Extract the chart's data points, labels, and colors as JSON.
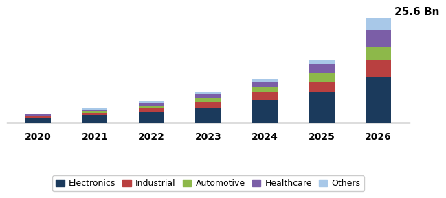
{
  "years": [
    "2020",
    "2021",
    "2022",
    "2023",
    "2024",
    "2025",
    "2026"
  ],
  "categories": [
    "Electronics",
    "Industrial",
    "Automotive",
    "Healthcare",
    "Others"
  ],
  "colors": [
    "#1b3a5c",
    "#b94040",
    "#8db84a",
    "#7b5ea7",
    "#a8c8e8"
  ],
  "values": {
    "Electronics": [
      1.2,
      1.9,
      2.7,
      3.8,
      5.5,
      7.5,
      11.0
    ],
    "Industrial": [
      0.35,
      0.55,
      0.85,
      1.3,
      1.85,
      2.6,
      4.2
    ],
    "Automotive": [
      0.25,
      0.4,
      0.65,
      0.95,
      1.4,
      2.1,
      3.4
    ],
    "Healthcare": [
      0.3,
      0.45,
      0.65,
      0.95,
      1.3,
      2.0,
      4.0
    ],
    "Others": [
      0.2,
      0.3,
      0.4,
      0.6,
      0.75,
      1.1,
      3.0
    ]
  },
  "annotation": "25.6 Bn",
  "annotation_year_index": 6,
  "ylim": [
    0,
    28
  ],
  "bar_width": 0.45,
  "bg_color": "#ffffff",
  "legend_ncol": 5,
  "tick_fontsize": 10,
  "annotation_fontsize": 11,
  "legend_fontsize": 9
}
